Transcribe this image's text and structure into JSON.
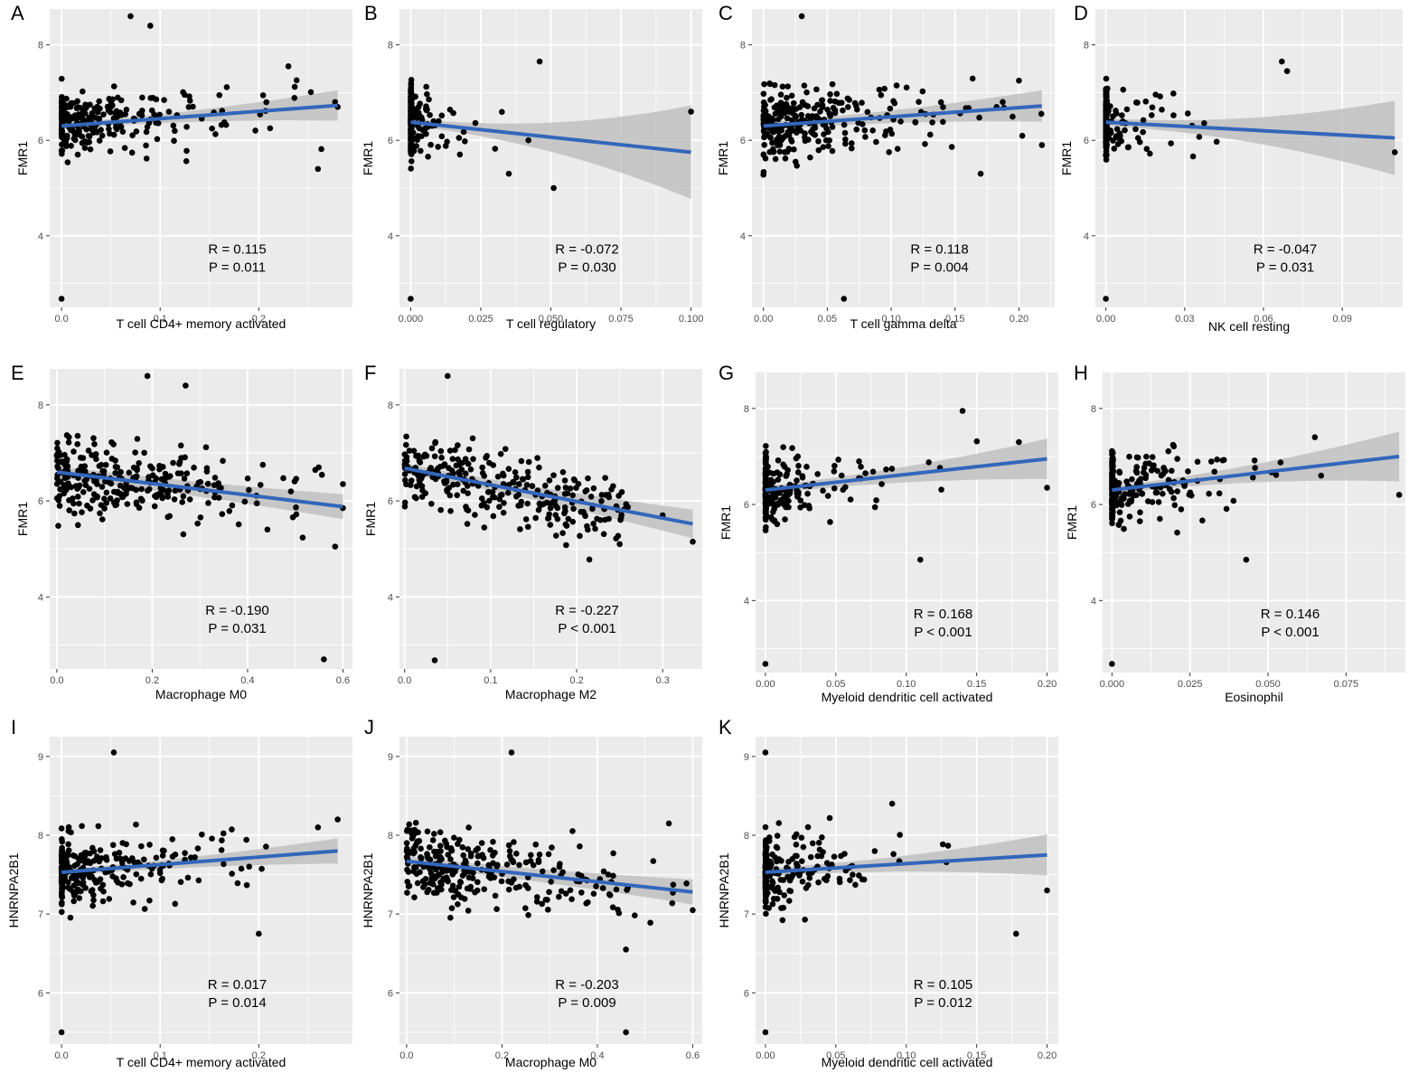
{
  "figure": {
    "description_free": true,
    "colors": {
      "panel_bg": "#ebebeb",
      "grid": "#ffffff",
      "point": "#000000",
      "line": "#3366bb",
      "band": "#bfbfbf"
    }
  },
  "chart_data": [
    {
      "panel": "A",
      "type": "scatter",
      "xlabel": "T cell CD4+ memory activated",
      "ylabel": "FMR1",
      "xlim": [
        -0.012,
        0.295
      ],
      "ylim": [
        2.5,
        8.75
      ],
      "xticks": [
        0,
        0.1,
        0.2
      ],
      "xtick_labels": [
        "0.0",
        "0.1",
        "0.2"
      ],
      "yticks": [
        4,
        6,
        8
      ],
      "ytick_labels": [
        "4",
        "6",
        "8"
      ],
      "fit": {
        "x": [
          0,
          0.28
        ],
        "y": [
          6.3,
          6.73
        ],
        "band_halfwidth": [
          0.06,
          0.32
        ]
      },
      "stats": {
        "r": "R = 0.115",
        "p": "P = 0.011"
      },
      "seed": 11,
      "n_points": 260,
      "zero_fraction": 0.22,
      "x_mode": "exp",
      "x_scale": 0.06,
      "x_max": 0.28,
      "y_mean": 6.4,
      "y_sd": 0.62,
      "extra_points": [
        [
          0,
          2.68
        ],
        [
          0.26,
          5.4
        ],
        [
          0.28,
          6.7
        ],
        [
          0.23,
          7.55
        ],
        [
          0.07,
          8.6
        ],
        [
          0.09,
          8.4
        ]
      ]
    },
    {
      "panel": "B",
      "type": "scatter",
      "xlabel": "T cell regulatory",
      "ylabel": "FMR1",
      "xlim": [
        -0.004,
        0.104
      ],
      "ylim": [
        2.5,
        8.75
      ],
      "xticks": [
        0,
        0.025,
        0.05,
        0.075,
        0.1
      ],
      "xtick_labels": [
        "0.000",
        "0.025",
        "0.050",
        "0.075",
        "0.100"
      ],
      "yticks": [
        4,
        6,
        8
      ],
      "ytick_labels": [
        "4",
        "6",
        "8"
      ],
      "fit": {
        "x": [
          0,
          0.1
        ],
        "y": [
          6.38,
          5.75
        ],
        "band_halfwidth": [
          0.08,
          0.98
        ]
      },
      "stats": {
        "r": "R = -0.072",
        "p": "P = 0.030"
      },
      "seed": 22,
      "n_points": 230,
      "zero_fraction": 0.72,
      "x_mode": "exp",
      "x_scale": 0.008,
      "x_max": 0.035,
      "y_mean": 6.4,
      "y_sd": 0.62,
      "extra_points": [
        [
          0,
          2.68
        ],
        [
          0.1,
          6.6
        ],
        [
          0.046,
          7.65
        ],
        [
          0.051,
          5.0
        ],
        [
          0.035,
          5.3
        ],
        [
          0.042,
          6.0
        ]
      ]
    },
    {
      "panel": "C",
      "type": "scatter",
      "xlabel": "T cell gamma delta",
      "ylabel": "FMR1",
      "xlim": [
        -0.009,
        0.228
      ],
      "ylim": [
        2.5,
        8.75
      ],
      "xticks": [
        0,
        0.05,
        0.1,
        0.15,
        0.2
      ],
      "xtick_labels": [
        "0.00",
        "0.05",
        "0.10",
        "0.15",
        "0.20"
      ],
      "yticks": [
        4,
        6,
        8
      ],
      "ytick_labels": [
        "4",
        "6",
        "8"
      ],
      "fit": {
        "x": [
          0,
          0.218
        ],
        "y": [
          6.3,
          6.72
        ],
        "band_halfwidth": [
          0.08,
          0.33
        ]
      },
      "stats": {
        "r": "R = 0.118",
        "p": "P = 0.004"
      },
      "seed": 33,
      "n_points": 270,
      "zero_fraction": 0.08,
      "x_mode": "exp",
      "x_scale": 0.05,
      "x_max": 0.22,
      "y_mean": 6.4,
      "y_sd": 0.65,
      "extra_points": [
        [
          0.063,
          2.68
        ],
        [
          0.218,
          5.9
        ],
        [
          0.2,
          7.25
        ],
        [
          0.17,
          5.3
        ],
        [
          0.03,
          8.6
        ]
      ]
    },
    {
      "panel": "D",
      "type": "scatter",
      "xlabel": "NK cell resting",
      "ylabel": "FMR1",
      "xlim": [
        -0.004,
        0.113
      ],
      "ylim": [
        2.5,
        8.75
      ],
      "xticks": [
        0,
        0.03,
        0.06,
        0.09
      ],
      "xtick_labels": [
        "0.00",
        "0.03",
        "0.06",
        "0.09"
      ],
      "yticks": [
        4,
        6,
        8
      ],
      "ytick_labels": [
        "4",
        "6",
        "8"
      ],
      "fit": {
        "x": [
          0,
          0.11
        ],
        "y": [
          6.38,
          6.05
        ],
        "band_halfwidth": [
          0.08,
          0.78
        ]
      },
      "stats": {
        "r": "R = -0.047",
        "p": "P = 0.031"
      },
      "seed": 44,
      "n_points": 220,
      "zero_fraction": 0.75,
      "x_mode": "exp",
      "x_scale": 0.012,
      "x_max": 0.05,
      "y_mean": 6.4,
      "y_sd": 0.62,
      "extra_points": [
        [
          0,
          2.68
        ],
        [
          0.11,
          5.75
        ],
        [
          0.067,
          7.65
        ],
        [
          0.069,
          7.45
        ]
      ]
    },
    {
      "panel": "E",
      "type": "scatter",
      "xlabel": "Macrophage M0",
      "ylabel": "FMR1",
      "xlim": [
        -0.015,
        0.62
      ],
      "ylim": [
        2.5,
        8.75
      ],
      "xticks": [
        0,
        0.2,
        0.4,
        0.6
      ],
      "xtick_labels": [
        "0.0",
        "0.2",
        "0.4",
        "0.6"
      ],
      "yticks": [
        4,
        6,
        8
      ],
      "ytick_labels": [
        "4",
        "6",
        "8"
      ],
      "fit": {
        "x": [
          0,
          0.6
        ],
        "y": [
          6.6,
          5.88
        ],
        "band_halfwidth": [
          0.12,
          0.26
        ]
      },
      "stats": {
        "r": "R = -0.190",
        "p": "P = 0.031"
      },
      "seed": 55,
      "n_points": 270,
      "zero_fraction": 0.03,
      "x_mode": "exp",
      "x_scale": 0.17,
      "x_max": 0.6,
      "y_mean": 6.4,
      "y_sd": 0.68,
      "extra_points": [
        [
          0.56,
          2.7
        ],
        [
          0.6,
          6.35
        ],
        [
          0.6,
          5.85
        ],
        [
          0.19,
          8.6
        ],
        [
          0.27,
          8.4
        ]
      ]
    },
    {
      "panel": "F",
      "type": "scatter",
      "xlabel": "Macrophage M2",
      "ylabel": "FMR1",
      "xlim": [
        -0.006,
        0.346
      ],
      "ylim": [
        2.5,
        8.75
      ],
      "xticks": [
        0,
        0.1,
        0.2,
        0.3
      ],
      "xtick_labels": [
        "0.0",
        "0.1",
        "0.2",
        "0.3"
      ],
      "yticks": [
        4,
        6,
        8
      ],
      "ytick_labels": [
        "4",
        "6",
        "8"
      ],
      "fit": {
        "x": [
          0,
          0.335
        ],
        "y": [
          6.68,
          5.52
        ],
        "band_halfwidth": [
          0.1,
          0.3
        ]
      },
      "stats": {
        "r": "R = -0.227",
        "p": "P < 0.001"
      },
      "seed": 66,
      "n_points": 280,
      "zero_fraction": 0.02,
      "x_mode": "uniformish",
      "x_scale": 0.22,
      "x_max": 0.26,
      "y_mean": 6.4,
      "y_sd": 0.66,
      "extra_points": [
        [
          0.035,
          2.68
        ],
        [
          0.335,
          5.15
        ],
        [
          0.3,
          5.7
        ],
        [
          0.25,
          5.1
        ],
        [
          0.05,
          8.6
        ]
      ]
    },
    {
      "panel": "G",
      "type": "scatter",
      "xlabel": "Myeloid dendritic cell activated",
      "ylabel": "FMR1",
      "xlim": [
        -0.007,
        0.208
      ],
      "ylim": [
        2.5,
        8.75
      ],
      "xticks": [
        0,
        0.05,
        0.1,
        0.15,
        0.2
      ],
      "xtick_labels": [
        "0.00",
        "0.05",
        "0.10",
        "0.15",
        "0.20"
      ],
      "yticks": [
        4,
        6,
        8
      ],
      "ytick_labels": [
        "4",
        "6",
        "8"
      ],
      "fit": {
        "x": [
          0,
          0.2
        ],
        "y": [
          6.3,
          6.95
        ],
        "band_halfwidth": [
          0.08,
          0.42
        ]
      },
      "stats": {
        "r": "R = 0.168",
        "p": "P < 0.001"
      },
      "seed": 77,
      "n_points": 250,
      "zero_fraction": 0.5,
      "x_mode": "exp",
      "x_scale": 0.03,
      "x_max": 0.2,
      "y_mean": 6.4,
      "y_sd": 0.65,
      "extra_points": [
        [
          0,
          2.68
        ],
        [
          0.2,
          6.35
        ],
        [
          0.18,
          7.3
        ],
        [
          0.14,
          7.95
        ],
        [
          0.11,
          4.85
        ]
      ]
    },
    {
      "panel": "H",
      "type": "scatter",
      "xlabel": "Eosinophil",
      "ylabel": "FMR1",
      "xlim": [
        -0.003,
        0.094
      ],
      "ylim": [
        2.5,
        8.75
      ],
      "xticks": [
        0,
        0.025,
        0.05,
        0.075
      ],
      "xtick_labels": [
        "0.000",
        "0.025",
        "0.050",
        "0.075"
      ],
      "yticks": [
        4,
        6,
        8
      ],
      "ytick_labels": [
        "4",
        "6",
        "8"
      ],
      "fit": {
        "x": [
          0,
          0.092
        ],
        "y": [
          6.3,
          7.0
        ],
        "band_halfwidth": [
          0.08,
          0.52
        ]
      },
      "stats": {
        "r": "R = 0.146",
        "p": "P < 0.001"
      },
      "seed": 88,
      "n_points": 250,
      "zero_fraction": 0.45,
      "x_mode": "exp",
      "x_scale": 0.014,
      "x_max": 0.06,
      "y_mean": 6.4,
      "y_sd": 0.65,
      "extra_points": [
        [
          0,
          2.68
        ],
        [
          0.092,
          6.2
        ],
        [
          0.067,
          6.6
        ],
        [
          0.065,
          7.4
        ],
        [
          0.043,
          4.85
        ]
      ]
    },
    {
      "panel": "I",
      "type": "scatter",
      "xlabel": "T cell CD4+ memory activated",
      "ylabel": "HNRNPA2B1",
      "xlim": [
        -0.012,
        0.295
      ],
      "ylim": [
        5.35,
        9.25
      ],
      "xticks": [
        0,
        0.1,
        0.2
      ],
      "xtick_labels": [
        "0.0",
        "0.1",
        "0.2"
      ],
      "yticks": [
        6,
        7,
        8,
        9
      ],
      "ytick_labels": [
        "6",
        "7",
        "8",
        "9"
      ],
      "fit": {
        "x": [
          0,
          0.28
        ],
        "y": [
          7.53,
          7.8
        ],
        "band_halfwidth": [
          0.04,
          0.16
        ]
      },
      "stats": {
        "r": "R = 0.017",
        "p": "P = 0.014"
      },
      "seed": 99,
      "n_points": 260,
      "zero_fraction": 0.25,
      "x_mode": "exp",
      "x_scale": 0.06,
      "x_max": 0.28,
      "y_mean": 7.6,
      "y_sd": 0.38,
      "extra_points": [
        [
          0,
          5.5
        ],
        [
          0.053,
          9.05
        ],
        [
          0.28,
          8.2
        ],
        [
          0.2,
          6.75
        ],
        [
          0.26,
          8.1
        ]
      ]
    },
    {
      "panel": "J",
      "type": "scatter",
      "xlabel": "Macrophage M0",
      "ylabel": "HNRNPA2B1",
      "xlim": [
        -0.015,
        0.62
      ],
      "ylim": [
        5.35,
        9.25
      ],
      "xticks": [
        0,
        0.2,
        0.4,
        0.6
      ],
      "xtick_labels": [
        "0.0",
        "0.2",
        "0.4",
        "0.6"
      ],
      "yticks": [
        6,
        7,
        8,
        9
      ],
      "ytick_labels": [
        "6",
        "7",
        "8",
        "9"
      ],
      "fit": {
        "x": [
          0,
          0.6
        ],
        "y": [
          7.67,
          7.28
        ],
        "band_halfwidth": [
          0.06,
          0.16
        ]
      },
      "stats": {
        "r": "R = -0.203",
        "p": "P = 0.009"
      },
      "seed": 111,
      "n_points": 280,
      "zero_fraction": 0.03,
      "x_mode": "exp",
      "x_scale": 0.17,
      "x_max": 0.6,
      "y_mean": 7.55,
      "y_sd": 0.38,
      "extra_points": [
        [
          0.46,
          5.5
        ],
        [
          0.22,
          9.05
        ],
        [
          0.6,
          7.05
        ],
        [
          0.55,
          8.15
        ],
        [
          0.46,
          6.55
        ]
      ]
    },
    {
      "panel": "K",
      "type": "scatter",
      "xlabel": "Myeloid dendritic cell activated",
      "ylabel": "HNRNPA2B1",
      "xlim": [
        -0.007,
        0.208
      ],
      "ylim": [
        5.35,
        9.25
      ],
      "xticks": [
        0,
        0.05,
        0.1,
        0.15,
        0.2
      ],
      "xtick_labels": [
        "0.00",
        "0.05",
        "0.10",
        "0.15",
        "0.20"
      ],
      "yticks": [
        6,
        7,
        8,
        9
      ],
      "ytick_labels": [
        "6",
        "7",
        "8",
        "9"
      ],
      "fit": {
        "x": [
          0,
          0.2
        ],
        "y": [
          7.53,
          7.75
        ],
        "band_halfwidth": [
          0.05,
          0.26
        ]
      },
      "stats": {
        "r": "R = 0.105",
        "p": "P = 0.012"
      },
      "seed": 122,
      "n_points": 250,
      "zero_fraction": 0.5,
      "x_mode": "exp",
      "x_scale": 0.03,
      "x_max": 0.2,
      "y_mean": 7.6,
      "y_sd": 0.38,
      "extra_points": [
        [
          0,
          5.5
        ],
        [
          0,
          9.05
        ],
        [
          0.2,
          7.3
        ],
        [
          0.178,
          6.75
        ],
        [
          0.09,
          8.4
        ]
      ]
    }
  ]
}
